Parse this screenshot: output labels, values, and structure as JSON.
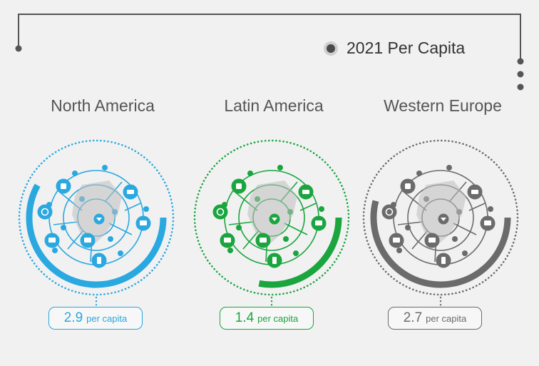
{
  "legend": {
    "label": "2021 Per Capita"
  },
  "colors": {
    "north_america": "#2aa8e0",
    "latin_america": "#1aa53f",
    "western_europe": "#6b6b6b",
    "frame": "#555555"
  },
  "chart_data": {
    "type": "radial-gauge",
    "title": "",
    "series": [
      {
        "name": "2021 Per Capita",
        "values": [
          2.9,
          1.4,
          2.7
        ]
      }
    ],
    "categories": [
      "North America",
      "Latin America",
      "Western Europe"
    ],
    "value_labels": [
      "2.9",
      "1.4",
      "2.7"
    ],
    "unit_label": "per capita",
    "max_value": 5
  }
}
